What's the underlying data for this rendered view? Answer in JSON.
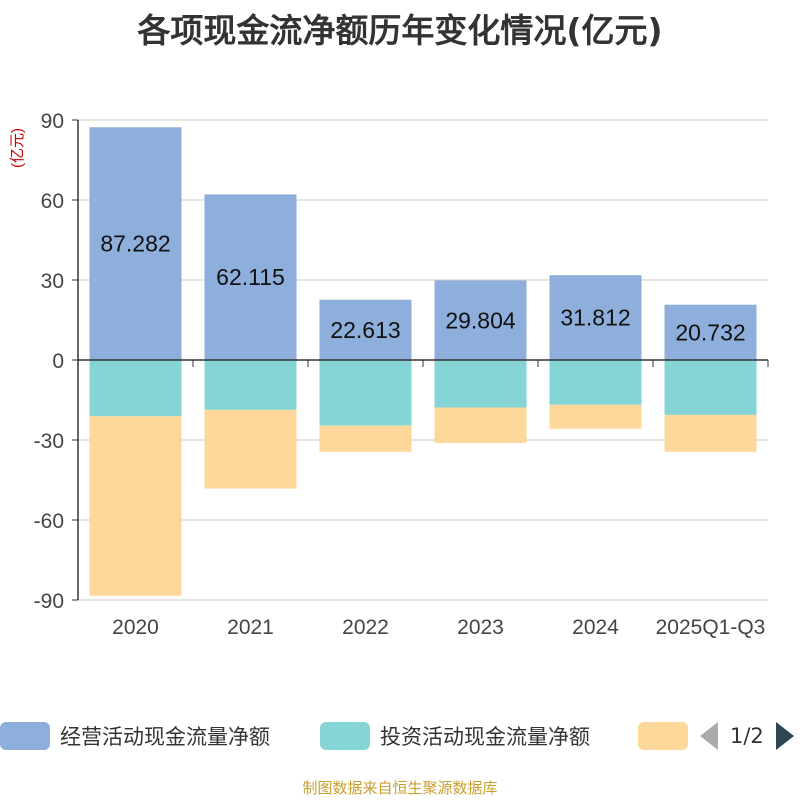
{
  "title": "各项现金流净额历年变化情况(亿元)",
  "unit_label": "(亿元)",
  "source": "制图数据来自恒生聚源数据库",
  "legend": {
    "items": [
      {
        "label": "经营活动现金流量净额",
        "color": "#8eaedb"
      },
      {
        "label": "投资活动现金流量净额",
        "color": "#85d5d6"
      },
      {
        "label": "",
        "color": "#fed89a"
      }
    ],
    "page": "1/2"
  },
  "chart_data": {
    "type": "bar",
    "stacked": true,
    "categories": [
      "2020",
      "2021",
      "2022",
      "2023",
      "2024",
      "2025Q1-Q3"
    ],
    "series": [
      {
        "name": "经营活动现金流量净额",
        "color": "#8eaedb",
        "values": [
          87.282,
          62.115,
          22.613,
          29.804,
          31.812,
          20.732
        ],
        "show_labels": true
      },
      {
        "name": "投资活动现金流量净额",
        "color": "#85d5d6",
        "values": [
          -21.1,
          -18.7,
          -24.6,
          -17.8,
          -16.8,
          -20.6
        ],
        "show_labels": false
      },
      {
        "name": "",
        "color": "#fed89a",
        "values": [
          -67.3,
          -29.5,
          -9.8,
          -13.3,
          -9.0,
          -13.8
        ],
        "show_labels": false
      }
    ],
    "ylim": [
      -90,
      90
    ],
    "yticks": [
      90,
      60,
      30,
      0,
      -30,
      -60,
      -90
    ],
    "ylabel": "(亿元)",
    "grid": true
  }
}
